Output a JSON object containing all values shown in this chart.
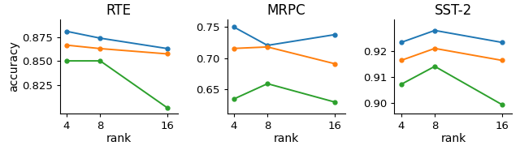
{
  "subplots": [
    {
      "title": "RTE",
      "xlabel": "rank",
      "ylabel": "accuracy",
      "x": [
        4,
        8,
        16
      ],
      "series": [
        {
          "color": "#1f77b4",
          "values": [
            0.8808,
            0.8737,
            0.8629
          ]
        },
        {
          "color": "#ff7f0e",
          "values": [
            0.8665,
            0.8629,
            0.8574
          ]
        },
        {
          "color": "#2ca02c",
          "values": [
            0.8502,
            0.8502,
            0.8015
          ]
        }
      ],
      "yticks": [
        0.825,
        0.85,
        0.875
      ],
      "ytick_labels": [
        "0.825",
        "0.850",
        "0.875"
      ],
      "ylim": [
        0.796,
        0.893
      ]
    },
    {
      "title": "MRPC",
      "xlabel": "rank",
      "ylabel": "",
      "x": [
        4,
        8,
        16
      ],
      "series": [
        {
          "color": "#1f77b4",
          "values": [
            0.75,
            0.7206,
            0.7378
          ]
        },
        {
          "color": "#ff7f0e",
          "values": [
            0.7157,
            0.7181,
            0.6912
          ]
        },
        {
          "color": "#2ca02c",
          "values": [
            0.6348,
            0.6593,
            0.6299
          ]
        }
      ],
      "yticks": [
        0.65,
        0.7,
        0.75
      ],
      "ytick_labels": [
        "0.65",
        "0.70",
        "0.75"
      ],
      "ylim": [
        0.612,
        0.762
      ]
    },
    {
      "title": "SST-2",
      "xlabel": "rank",
      "ylabel": "",
      "x": [
        4,
        8,
        16
      ],
      "series": [
        {
          "color": "#1f77b4",
          "values": [
            0.9232,
            0.9278,
            0.9232
          ]
        },
        {
          "color": "#ff7f0e",
          "values": [
            0.9163,
            0.9209,
            0.9163
          ]
        },
        {
          "color": "#2ca02c",
          "values": [
            0.9071,
            0.914,
            0.8993
          ]
        }
      ],
      "yticks": [
        0.9,
        0.91,
        0.92
      ],
      "ytick_labels": [
        "0.90",
        "0.91",
        "0.92"
      ],
      "ylim": [
        0.896,
        0.932
      ]
    }
  ],
  "marker": "o",
  "markersize": 3.5,
  "linewidth": 1.4,
  "title_fontsize": 12,
  "label_fontsize": 10,
  "tick_fontsize": 9.5
}
